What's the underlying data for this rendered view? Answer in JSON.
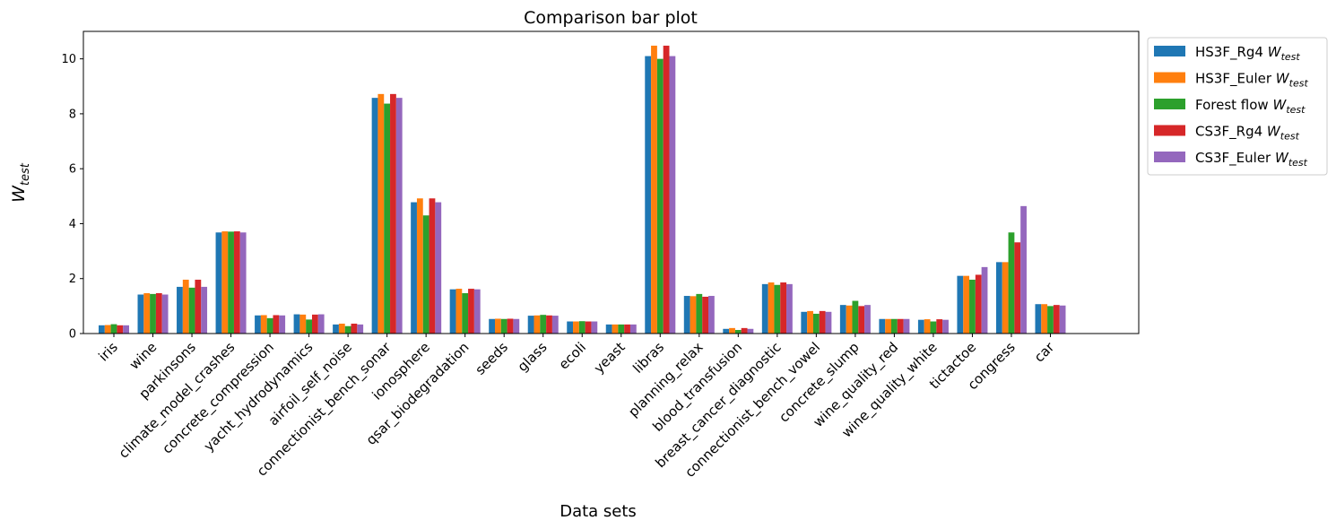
{
  "chart_data": {
    "type": "bar",
    "title": "Comparison bar plot",
    "xlabel": "Data sets",
    "ylabel": "W_test",
    "ylabel_main": "W",
    "ylabel_sub": "test",
    "ylim": [
      0,
      11
    ],
    "yticks": [
      0,
      2,
      4,
      6,
      8,
      10
    ],
    "yticks_labels": [
      "0",
      "2",
      "4",
      "6",
      "8",
      "10"
    ],
    "legend_position": "outside-upper-right",
    "categories": [
      "iris",
      "wine",
      "parkinsons",
      "climate_model_crashes",
      "concrete_compression",
      "yacht_hydrodynamics",
      "airfoil_self_noise",
      "connectionist_bench_sonar",
      "ionosphere",
      "qsar_biodegradation",
      "seeds",
      "glass",
      "ecoli",
      "yeast",
      "libras",
      "planning_relax",
      "blood_transfusion",
      "breast_cancer_diagnostic",
      "connectionist_bench_vowel",
      "concrete_slump",
      "wine_quality_red",
      "wine_quality_white",
      "tictactoe",
      "congress",
      "car"
    ],
    "series": [
      {
        "name": "HS3F_Rg4",
        "label_main": "HS3F_Rg4 W",
        "label_sub": "test",
        "color": "#1f77b4",
        "values": [
          0.3,
          1.42,
          1.7,
          3.68,
          0.66,
          0.7,
          0.33,
          8.58,
          4.78,
          1.61,
          0.53,
          0.65,
          0.44,
          0.33,
          10.1,
          1.37,
          0.17,
          1.8,
          0.79,
          1.04,
          0.53,
          0.5,
          2.1,
          2.6,
          1.07
        ]
      },
      {
        "name": "HS3F_Euler",
        "label_main": "HS3F_Euler W",
        "label_sub": "test",
        "color": "#ff7f0e",
        "values": [
          0.31,
          1.47,
          1.96,
          3.72,
          0.67,
          0.69,
          0.36,
          8.72,
          4.92,
          1.63,
          0.54,
          0.66,
          0.44,
          0.33,
          10.48,
          1.36,
          0.2,
          1.86,
          0.82,
          1.02,
          0.53,
          0.52,
          2.1,
          2.6,
          1.07
        ]
      },
      {
        "name": "Forest flow",
        "label_main": "Forest flow W",
        "label_sub": "test",
        "color": "#2ca02c",
        "values": [
          0.34,
          1.44,
          1.67,
          3.71,
          0.56,
          0.51,
          0.27,
          8.37,
          4.3,
          1.47,
          0.53,
          0.68,
          0.45,
          0.33,
          10.0,
          1.44,
          0.13,
          1.77,
          0.72,
          1.19,
          0.53,
          0.44,
          1.96,
          3.68,
          1.0
        ]
      },
      {
        "name": "CS3F_Rg4",
        "label_main": "CS3F_Rg4 W",
        "label_sub": "test",
        "color": "#d62728",
        "values": [
          0.3,
          1.47,
          1.96,
          3.72,
          0.67,
          0.69,
          0.36,
          8.72,
          4.92,
          1.63,
          0.54,
          0.66,
          0.44,
          0.33,
          10.48,
          1.34,
          0.2,
          1.86,
          0.82,
          1.0,
          0.53,
          0.52,
          2.14,
          3.32,
          1.04
        ]
      },
      {
        "name": "CS3F_Euler",
        "label_main": "CS3F_Euler W",
        "label_sub": "test",
        "color": "#9467bd",
        "values": [
          0.3,
          1.42,
          1.7,
          3.68,
          0.66,
          0.7,
          0.33,
          8.58,
          4.78,
          1.61,
          0.53,
          0.65,
          0.44,
          0.33,
          10.1,
          1.37,
          0.17,
          1.8,
          0.79,
          1.04,
          0.53,
          0.5,
          2.42,
          4.64,
          1.02
        ]
      }
    ]
  }
}
